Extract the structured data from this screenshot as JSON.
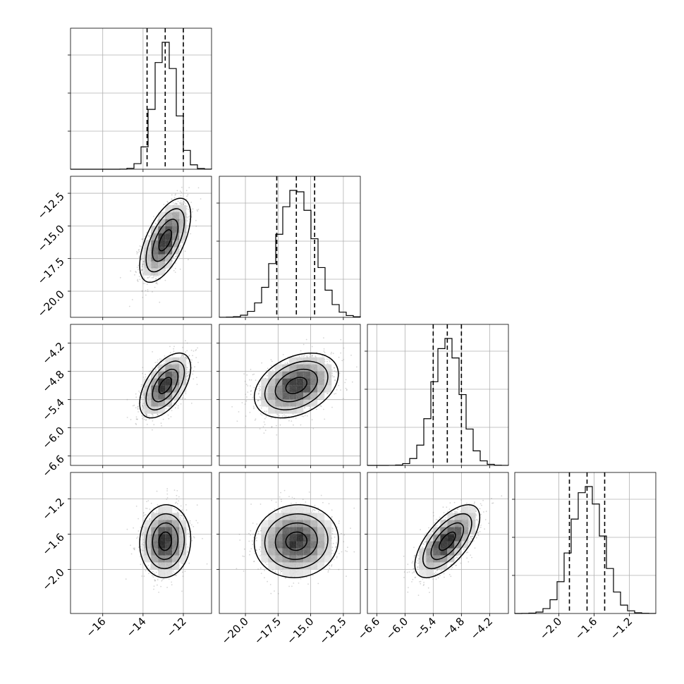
{
  "chart_data": {
    "type": "corner",
    "parameters": [
      {
        "mean": -12.9,
        "sd": 0.55,
        "range": [
          -17.6,
          -10.6
        ],
        "ticks": [
          -16,
          -14,
          -12
        ],
        "tick_labels": [
          "−16",
          "−14",
          "−12"
        ],
        "quantiles": [
          -13.8,
          -12.9,
          -12.0
        ]
      },
      {
        "mean": -16.1,
        "sd": 1.4,
        "range": [
          -22.0,
          -11.2
        ],
        "ticks": [
          -20.0,
          -17.5,
          -15.0,
          -12.5
        ],
        "tick_labels": [
          "−20.0",
          "−17.5",
          "−15.0",
          "−12.5"
        ],
        "quantiles": [
          -17.6,
          -16.1,
          -14.7
        ]
      },
      {
        "mean": -5.1,
        "sd": 0.3,
        "range": [
          -6.8,
          -3.8
        ],
        "ticks": [
          -6.6,
          -6.0,
          -5.4,
          -4.8,
          -4.2
        ],
        "tick_labels": [
          "−6.6",
          "−6.0",
          "−5.4",
          "−4.8",
          "−4.2"
        ],
        "quantiles": [
          -5.4,
          -5.1,
          -4.8
        ]
      },
      {
        "mean": -1.68,
        "sd": 0.18,
        "range": [
          -2.5,
          -0.9
        ],
        "ticks": [
          -2.0,
          -1.6,
          -1.2
        ],
        "tick_labels": [
          "−2.0",
          "−1.6",
          "−1.2"
        ],
        "quantiles": [
          -1.88,
          -1.68,
          -1.48
        ]
      }
    ],
    "correlations": [
      [
        1.0,
        0.6,
        0.55,
        0.05
      ],
      [
        0.6,
        1.0,
        0.35,
        0.05
      ],
      [
        0.55,
        0.35,
        1.0,
        0.65
      ],
      [
        0.05,
        0.05,
        0.65,
        1.0
      ]
    ],
    "histogram_bins": 20,
    "contour_levels_sigma": [
      0.5,
      1.0,
      1.5,
      2.0
    ],
    "grid": true,
    "colors": {
      "hist": "#000000",
      "scatter": "#888888",
      "grid": "#b0b0b0"
    }
  }
}
